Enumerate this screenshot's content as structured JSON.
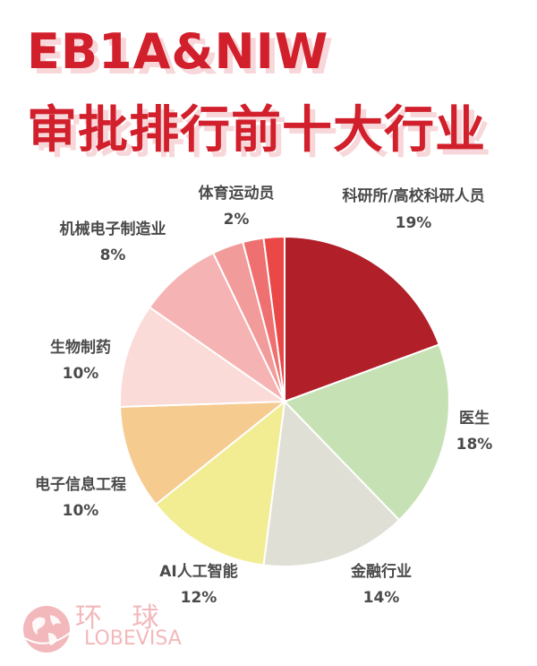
{
  "title_line1": "EB1A&NIW",
  "title_line2": "审批排行前十大行业",
  "logo": {
    "text_cn": "环 球",
    "text_en": "LOBEVISA"
  },
  "chart_data": {
    "type": "pie",
    "title": "EB1A&NIW 审批排行前十大行业",
    "slices": [
      {
        "label": "科研所/高校科研人员",
        "value_label": "19%",
        "value": 19,
        "color": "#b11f29"
      },
      {
        "label": "医生",
        "value_label": "18%",
        "value": 18,
        "color": "#c6e2b4"
      },
      {
        "label": "金融行业",
        "value_label": "14%",
        "value": 14,
        "color": "#dfdfd5"
      },
      {
        "label": "AI人工智能",
        "value_label": "12%",
        "value": 12,
        "color": "#f2ec92"
      },
      {
        "label": "电子信息工程",
        "value_label": "10%",
        "value": 10,
        "color": "#f5cb90"
      },
      {
        "label": "生物制药",
        "value_label": "10%",
        "value": 10,
        "color": "#fadbd7"
      },
      {
        "label": "机械电子制造业",
        "value_label": "8%",
        "value": 8,
        "color": "#f6b3b4"
      },
      {
        "label": "",
        "value_label": "",
        "value": 3,
        "color": "#f29b9b"
      },
      {
        "label": "",
        "value_label": "",
        "value": 2,
        "color": "#ee7070"
      },
      {
        "label": "体育运动员",
        "value_label": "2%",
        "value": 2,
        "color": "#e94846"
      }
    ]
  }
}
